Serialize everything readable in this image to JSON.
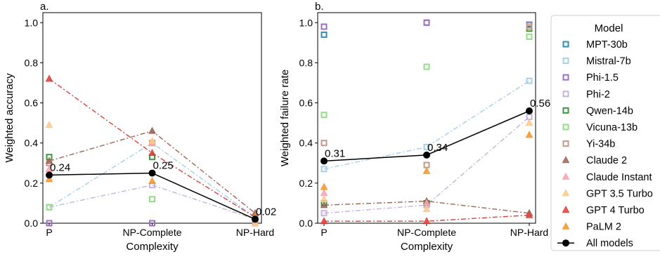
{
  "chart_data": [
    {
      "type": "scatter",
      "panel_label": "a.",
      "xlabel": "Complexity",
      "ylabel": "Weighted accuracy",
      "categories": [
        "P",
        "NP-Complete",
        "NP-Hard"
      ],
      "ylim": [
        0,
        1.05
      ],
      "yticks": [
        "0.0",
        "0.2",
        "0.4",
        "0.6",
        "0.8",
        "1.0"
      ],
      "grid": false,
      "series": [
        {
          "name": "MPT-30b",
          "marker": "square",
          "color": "#2f8db8",
          "values": [
            0.0,
            0.0,
            0.0
          ],
          "line": false
        },
        {
          "name": "Mistral-7b",
          "marker": "square",
          "color": "#a8cfe8",
          "values": [
            0.08,
            0.4,
            0.03
          ],
          "line": true
        },
        {
          "name": "Phi-1.5",
          "marker": "square",
          "color": "#9c6fc0",
          "values": [
            0.0,
            0.0,
            0.0
          ],
          "line": false
        },
        {
          "name": "Phi-2",
          "marker": "square",
          "color": "#c6b4de",
          "values": [
            0.08,
            0.19,
            0.02
          ],
          "line": true
        },
        {
          "name": "Qwen-14b",
          "marker": "square",
          "color": "#3a9a3a",
          "values": [
            0.33,
            0.33,
            0.0
          ],
          "line": false
        },
        {
          "name": "Vicuna-13b",
          "marker": "square",
          "color": "#94dd88",
          "values": [
            0.08,
            0.12,
            0.0
          ],
          "line": false
        },
        {
          "name": "Yi-34b",
          "marker": "square",
          "color": "#c4998b",
          "values": [
            0.3,
            0.4,
            0.0
          ],
          "line": false
        },
        {
          "name": "Claude 2",
          "marker": "triangle",
          "color": "#9b6557",
          "values": [
            0.31,
            0.46,
            0.05
          ],
          "line": true
        },
        {
          "name": "Claude Instant",
          "marker": "triangle",
          "color": "#f4a4b3",
          "values": [
            0.27,
            0.4,
            0.0
          ],
          "line": false
        },
        {
          "name": "GPT 3.5 Turbo",
          "marker": "triangle",
          "color": "#fcc98a",
          "values": [
            0.49,
            0.41,
            0.0
          ],
          "line": false
        },
        {
          "name": "GPT 4 Turbo",
          "marker": "triangle",
          "color": "#d9423c",
          "values": [
            0.72,
            0.35,
            0.03
          ],
          "line": true
        },
        {
          "name": "PaLM 2",
          "marker": "triangle",
          "color": "#f5952b",
          "values": [
            0.22,
            0.21,
            0.03
          ],
          "line": false
        },
        {
          "name": "All models",
          "marker": "circle",
          "color": "#000000",
          "values": [
            0.24,
            0.25,
            0.02
          ],
          "line": true,
          "labels": [
            "0.24",
            "0.25",
            "0.02"
          ]
        }
      ]
    },
    {
      "type": "scatter",
      "panel_label": "b.",
      "xlabel": "Complexity",
      "ylabel": "Weighted failure rate",
      "categories": [
        "P",
        "NP-Complete",
        "NP-Hard"
      ],
      "ylim": [
        0,
        1.05
      ],
      "yticks": [
        "0.0",
        "0.2",
        "0.4",
        "0.6",
        "0.8",
        "1.0"
      ],
      "grid": false,
      "series": [
        {
          "name": "MPT-30b",
          "marker": "square",
          "color": "#2f8db8",
          "values": [
            0.94,
            1.0,
            0.99
          ],
          "line": false
        },
        {
          "name": "Mistral-7b",
          "marker": "square",
          "color": "#a8cfe8",
          "values": [
            0.27,
            0.38,
            0.71
          ],
          "line": true
        },
        {
          "name": "Phi-1.5",
          "marker": "square",
          "color": "#9c6fc0",
          "values": [
            0.98,
            1.0,
            0.99
          ],
          "line": false
        },
        {
          "name": "Phi-2",
          "marker": "square",
          "color": "#c6b4de",
          "values": [
            0.05,
            0.09,
            0.53
          ],
          "line": true
        },
        {
          "name": "Qwen-14b",
          "marker": "square",
          "color": "#3a9a3a",
          "values": [
            0.1,
            0.1,
            0.97
          ],
          "line": false
        },
        {
          "name": "Vicuna-13b",
          "marker": "square",
          "color": "#94dd88",
          "values": [
            0.54,
            0.78,
            0.93
          ],
          "line": false
        },
        {
          "name": "Yi-34b",
          "marker": "square",
          "color": "#c4998b",
          "values": [
            0.4,
            0.29,
            0.98
          ],
          "line": false
        },
        {
          "name": "Claude 2",
          "marker": "triangle",
          "color": "#9b6557",
          "values": [
            0.09,
            0.11,
            0.05
          ],
          "line": true
        },
        {
          "name": "Claude Instant",
          "marker": "triangle",
          "color": "#f4a4b3",
          "values": [
            0.15,
            0.1,
            0.04
          ],
          "line": false
        },
        {
          "name": "GPT 3.5 Turbo",
          "marker": "triangle",
          "color": "#fcc98a",
          "values": [
            0.12,
            0.07,
            0.5
          ],
          "line": false
        },
        {
          "name": "GPT 4 Turbo",
          "marker": "triangle",
          "color": "#d9423c",
          "values": [
            0.01,
            0.01,
            0.04
          ],
          "line": true
        },
        {
          "name": "PaLM 2",
          "marker": "triangle",
          "color": "#f5952b",
          "values": [
            0.18,
            0.26,
            0.44
          ],
          "line": false
        },
        {
          "name": "All models",
          "marker": "circle",
          "color": "#000000",
          "values": [
            0.31,
            0.34,
            0.56
          ],
          "line": true,
          "labels": [
            "0.31",
            "0.34",
            "0.56"
          ]
        }
      ]
    }
  ],
  "legend": {
    "title": "Model",
    "placement": "right",
    "entries": [
      {
        "label": "MPT-30b",
        "marker": "square",
        "color": "#2f8db8"
      },
      {
        "label": "Mistral-7b",
        "marker": "square",
        "color": "#a8cfe8"
      },
      {
        "label": "Phi-1.5",
        "marker": "square",
        "color": "#9c6fc0"
      },
      {
        "label": "Phi-2",
        "marker": "square",
        "color": "#c6b4de"
      },
      {
        "label": "Qwen-14b",
        "marker": "square",
        "color": "#3a9a3a"
      },
      {
        "label": "Vicuna-13b",
        "marker": "square",
        "color": "#94dd88"
      },
      {
        "label": "Yi-34b",
        "marker": "square",
        "color": "#c4998b"
      },
      {
        "label": "Claude 2",
        "marker": "triangle",
        "color": "#9b6557"
      },
      {
        "label": "Claude Instant",
        "marker": "triangle",
        "color": "#f4a4b3"
      },
      {
        "label": "GPT 3.5 Turbo",
        "marker": "triangle",
        "color": "#fcc98a"
      },
      {
        "label": "GPT 4 Turbo",
        "marker": "triangle",
        "color": "#d9423c"
      },
      {
        "label": "PaLM 2",
        "marker": "triangle",
        "color": "#f5952b"
      },
      {
        "label": "All models",
        "marker": "circle-line",
        "color": "#000000"
      }
    ]
  }
}
